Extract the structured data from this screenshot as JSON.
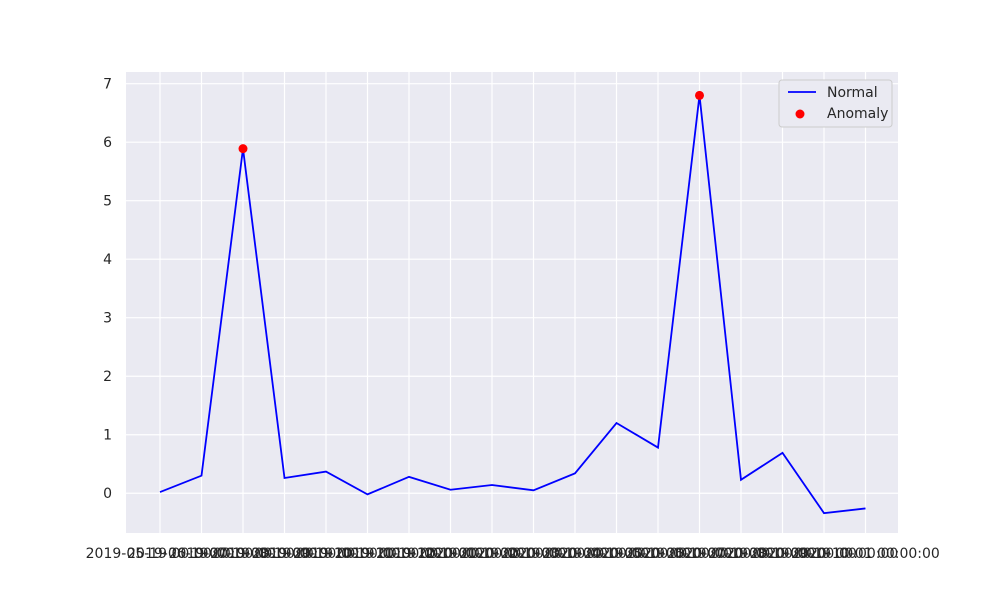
{
  "chart_data": {
    "type": "line",
    "x": [
      "2019-05-19 00:00:00",
      "2019-06-19 00:00:00",
      "2019-07-19 00:00:00",
      "2019-08-19 00:00:00",
      "2019-09-19 00:00:00",
      "2019-10-19 00:00:00",
      "2019-11-19 00:00:00",
      "2019-12-19 00:00:00",
      "2020-01-19 00:00:00",
      "2020-02-19 00:00:00",
      "2020-03-19 00:00:00",
      "2020-04-19 00:00:00",
      "2020-05-19 00:00:00",
      "2020-06-19 00:00:00",
      "2020-07-19 00:00:00",
      "2020-08-19 00:00:00",
      "2020-09-19 00:00:00",
      "2020-10-01 00:00:00"
    ],
    "series": [
      {
        "name": "Normal",
        "color": "#0000ff",
        "values": [
          0.02,
          0.3,
          5.89,
          0.26,
          0.37,
          -0.02,
          0.28,
          0.06,
          0.14,
          0.05,
          0.34,
          1.2,
          0.78,
          6.8,
          0.23,
          0.69,
          -0.34,
          -0.26
        ]
      }
    ],
    "anomalies": {
      "name": "Anomaly",
      "color": "#ff0000",
      "x": [
        "2019-07-19 00:00:00",
        "2020-06-19 00:00:00"
      ],
      "values": [
        5.89,
        6.8
      ]
    },
    "title": "",
    "xlabel": "",
    "ylabel": "",
    "ylim": [
      -0.68,
      7.2
    ],
    "yticks": [
      0,
      1,
      2,
      3,
      4,
      5,
      6,
      7
    ],
    "grid": true,
    "legend_position": "top-right",
    "background_color": "#eaeaf2",
    "grid_color": "#ffffff"
  }
}
